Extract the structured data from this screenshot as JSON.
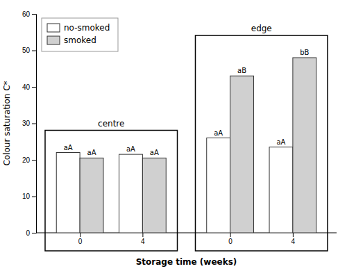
{
  "chart_data": {
    "type": "bar",
    "xlabel": "Storage time (weeks)",
    "ylabel": "Colour saturation C*",
    "categories": [
      "0",
      "4",
      "0",
      "4"
    ],
    "section_labels": [
      "centre",
      "edge"
    ],
    "series": [
      {
        "name": "no-smoked",
        "color": "#ffffff",
        "values": [
          22.0,
          21.5,
          26.0,
          23.5
        ],
        "annotations": [
          "aA",
          "aA",
          "aA",
          "aA"
        ]
      },
      {
        "name": "smoked",
        "color": "#d0d0d0",
        "values": [
          20.5,
          20.5,
          43.0,
          48.0
        ],
        "annotations": [
          "aA",
          "aA",
          "aB",
          "bB"
        ]
      }
    ],
    "ylim": [
      0,
      60
    ],
    "yticks": [
      0,
      10,
      20,
      30,
      40,
      50,
      60
    ],
    "grid": false,
    "legend": "upper left"
  }
}
